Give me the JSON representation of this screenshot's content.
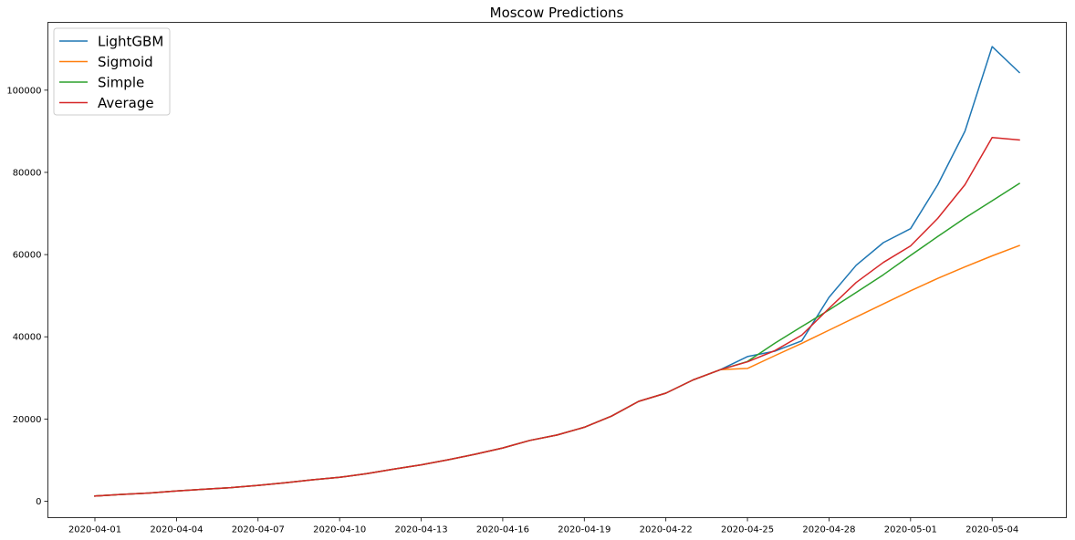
{
  "chart_data": {
    "type": "line",
    "title": "Moscow Predictions",
    "xlabel": "",
    "ylabel": "",
    "x": [
      "2020-04-01",
      "2020-04-02",
      "2020-04-03",
      "2020-04-04",
      "2020-04-05",
      "2020-04-06",
      "2020-04-07",
      "2020-04-08",
      "2020-04-09",
      "2020-04-10",
      "2020-04-11",
      "2020-04-12",
      "2020-04-13",
      "2020-04-14",
      "2020-04-15",
      "2020-04-16",
      "2020-04-17",
      "2020-04-18",
      "2020-04-19",
      "2020-04-20",
      "2020-04-21",
      "2020-04-22",
      "2020-04-23",
      "2020-04-24",
      "2020-04-25",
      "2020-04-26",
      "2020-04-27",
      "2020-04-28",
      "2020-04-29",
      "2020-04-30",
      "2020-05-01",
      "2020-05-02",
      "2020-05-03",
      "2020-05-04",
      "2020-05-05"
    ],
    "xticks": [
      "2020-04-01",
      "2020-04-04",
      "2020-04-07",
      "2020-04-10",
      "2020-04-13",
      "2020-04-16",
      "2020-04-19",
      "2020-04-22",
      "2020-04-25",
      "2020-04-28",
      "2020-05-01",
      "2020-05-04"
    ],
    "yticks": [
      0,
      20000,
      40000,
      60000,
      80000,
      100000
    ],
    "ylim": [
      -4000,
      116500
    ],
    "legend_position": "top-left",
    "grid": false,
    "series": [
      {
        "name": "LightGBM",
        "color": "#1f77b4",
        "values": [
          1250,
          1650,
          2000,
          2500,
          2900,
          3300,
          3850,
          4500,
          5200,
          5800,
          6700,
          7800,
          8850,
          10100,
          11450,
          12950,
          14800,
          16100,
          18000,
          20700,
          24300,
          26300,
          29500,
          32000,
          35200,
          36500,
          39000,
          49600,
          57400,
          62900,
          66300,
          77000,
          90000,
          110600,
          104300
        ]
      },
      {
        "name": "Sigmoid",
        "color": "#ff7f0e",
        "values": [
          1250,
          1650,
          2000,
          2500,
          2900,
          3300,
          3850,
          4500,
          5200,
          5800,
          6700,
          7800,
          8850,
          10100,
          11450,
          12950,
          14800,
          16100,
          18000,
          20700,
          24300,
          26300,
          29500,
          32000,
          32300,
          35400,
          38400,
          41600,
          44800,
          48000,
          51200,
          54200,
          57000,
          59700,
          62200
        ]
      },
      {
        "name": "Simple",
        "color": "#2ca02c",
        "values": [
          1250,
          1650,
          2000,
          2500,
          2900,
          3300,
          3850,
          4500,
          5200,
          5800,
          6700,
          7800,
          8850,
          10100,
          11450,
          12950,
          14800,
          16100,
          18000,
          20700,
          24300,
          26300,
          29500,
          32000,
          34000,
          38400,
          42500,
          46500,
          50800,
          55100,
          59800,
          64400,
          68900,
          73100,
          77300
        ]
      },
      {
        "name": "Average",
        "color": "#d62728",
        "values": [
          1250,
          1650,
          2000,
          2500,
          2900,
          3300,
          3850,
          4500,
          5200,
          5800,
          6700,
          7800,
          8850,
          10100,
          11450,
          12950,
          14800,
          16100,
          18000,
          20700,
          24300,
          26300,
          29500,
          32000,
          33900,
          36600,
          40400,
          46900,
          53200,
          58100,
          62100,
          68800,
          77000,
          88500,
          87900
        ]
      }
    ]
  }
}
